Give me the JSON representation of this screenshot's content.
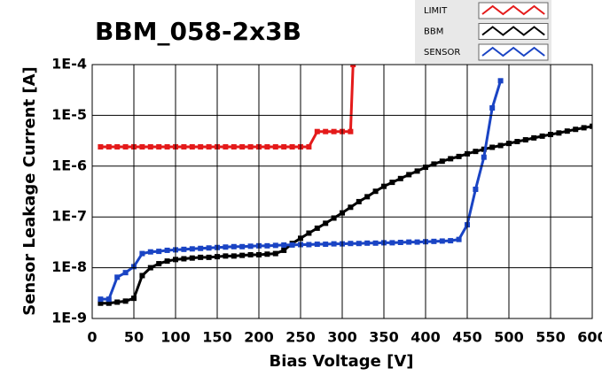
{
  "chart_data": {
    "type": "line",
    "title": "BBM_058-2x3B",
    "x_label": "Bias Voltage [V]",
    "y_label": "Sensor Leakage Current [A]",
    "log_y": true,
    "grid": true,
    "xlim": [
      0,
      600
    ],
    "xticks": [
      0,
      50,
      100,
      150,
      200,
      250,
      300,
      350,
      400,
      450,
      500,
      550,
      600
    ],
    "ylim": [
      1e-09,
      0.0001
    ],
    "yticks": [
      {
        "value": 1e-09,
        "label": "1E-9"
      },
      {
        "value": 1e-08,
        "label": "1E-8"
      },
      {
        "value": 1e-07,
        "label": "1E-7"
      },
      {
        "value": 1e-06,
        "label": "1E-6"
      },
      {
        "value": 1e-05,
        "label": "1E-5"
      },
      {
        "value": 0.0001,
        "label": "1E-4"
      }
    ],
    "series": [
      {
        "name": "LIMIT",
        "color": "#e41a1a",
        "x": [
          10,
          20,
          30,
          40,
          50,
          60,
          70,
          80,
          90,
          100,
          110,
          120,
          130,
          140,
          150,
          160,
          170,
          180,
          190,
          200,
          210,
          220,
          230,
          240,
          250,
          260,
          270,
          280,
          290,
          300,
          310,
          313
        ],
        "values": [
          2.4e-06,
          2.4e-06,
          2.4e-06,
          2.4e-06,
          2.4e-06,
          2.4e-06,
          2.4e-06,
          2.4e-06,
          2.4e-06,
          2.4e-06,
          2.4e-06,
          2.4e-06,
          2.4e-06,
          2.4e-06,
          2.4e-06,
          2.4e-06,
          2.4e-06,
          2.4e-06,
          2.4e-06,
          2.4e-06,
          2.4e-06,
          2.4e-06,
          2.4e-06,
          2.4e-06,
          2.4e-06,
          2.4e-06,
          4.8e-06,
          4.8e-06,
          4.8e-06,
          4.8e-06,
          4.8e-06,
          0.0001
        ]
      },
      {
        "name": "BBM",
        "color": "#000000",
        "x": [
          10,
          20,
          30,
          40,
          50,
          60,
          70,
          80,
          90,
          100,
          110,
          120,
          130,
          140,
          150,
          160,
          170,
          180,
          190,
          200,
          210,
          220,
          230,
          240,
          250,
          260,
          270,
          280,
          290,
          300,
          310,
          320,
          330,
          340,
          350,
          360,
          370,
          380,
          390,
          400,
          410,
          420,
          430,
          440,
          450,
          460,
          470,
          480,
          490,
          500,
          510,
          520,
          530,
          540,
          550,
          560,
          570,
          580,
          590,
          600
        ],
        "values": [
          2e-09,
          2e-09,
          2.1e-09,
          2.2e-09,
          2.5e-09,
          7e-09,
          1e-08,
          1.2e-08,
          1.35e-08,
          1.45e-08,
          1.5e-08,
          1.55e-08,
          1.6e-08,
          1.6e-08,
          1.65e-08,
          1.7e-08,
          1.7e-08,
          1.75e-08,
          1.8e-08,
          1.8e-08,
          1.85e-08,
          1.9e-08,
          2.2e-08,
          3e-08,
          3.8e-08,
          4.8e-08,
          6e-08,
          7.5e-08,
          9.5e-08,
          1.2e-07,
          1.55e-07,
          2e-07,
          2.5e-07,
          3.2e-07,
          4e-07,
          4.8e-07,
          5.7e-07,
          6.8e-07,
          8e-07,
          9.5e-07,
          1.1e-06,
          1.25e-06,
          1.4e-06,
          1.55e-06,
          1.75e-06,
          1.95e-06,
          2.15e-06,
          2.35e-06,
          2.55e-06,
          2.8e-06,
          3.05e-06,
          3.3e-06,
          3.6e-06,
          3.9e-06,
          4.2e-06,
          4.5e-06,
          4.9e-06,
          5.3e-06,
          5.7e-06,
          6.1e-06
        ]
      },
      {
        "name": "SENSOR",
        "color": "#1a44c4",
        "x": [
          10,
          20,
          30,
          40,
          50,
          60,
          70,
          80,
          90,
          100,
          110,
          120,
          130,
          140,
          150,
          160,
          170,
          180,
          190,
          200,
          210,
          220,
          230,
          240,
          250,
          260,
          270,
          280,
          290,
          300,
          310,
          320,
          330,
          340,
          350,
          360,
          370,
          380,
          390,
          400,
          410,
          420,
          430,
          440,
          450,
          460,
          470,
          480,
          490
        ],
        "values": [
          2.4e-09,
          2.4e-09,
          6.5e-09,
          8e-09,
          1.05e-08,
          1.9e-08,
          2.05e-08,
          2.1e-08,
          2.2e-08,
          2.25e-08,
          2.3e-08,
          2.35e-08,
          2.4e-08,
          2.45e-08,
          2.5e-08,
          2.55e-08,
          2.6e-08,
          2.6e-08,
          2.65e-08,
          2.7e-08,
          2.7e-08,
          2.75e-08,
          2.8e-08,
          2.8e-08,
          2.85e-08,
          2.85e-08,
          2.9e-08,
          2.9e-08,
          2.95e-08,
          2.95e-08,
          3e-08,
          3e-08,
          3.05e-08,
          3.05e-08,
          3.1e-08,
          3.1e-08,
          3.15e-08,
          3.2e-08,
          3.2e-08,
          3.25e-08,
          3.3e-08,
          3.35e-08,
          3.4e-08,
          3.6e-08,
          7e-08,
          3.5e-07,
          1.5e-06,
          1.4e-05,
          4.8e-05
        ]
      }
    ]
  }
}
